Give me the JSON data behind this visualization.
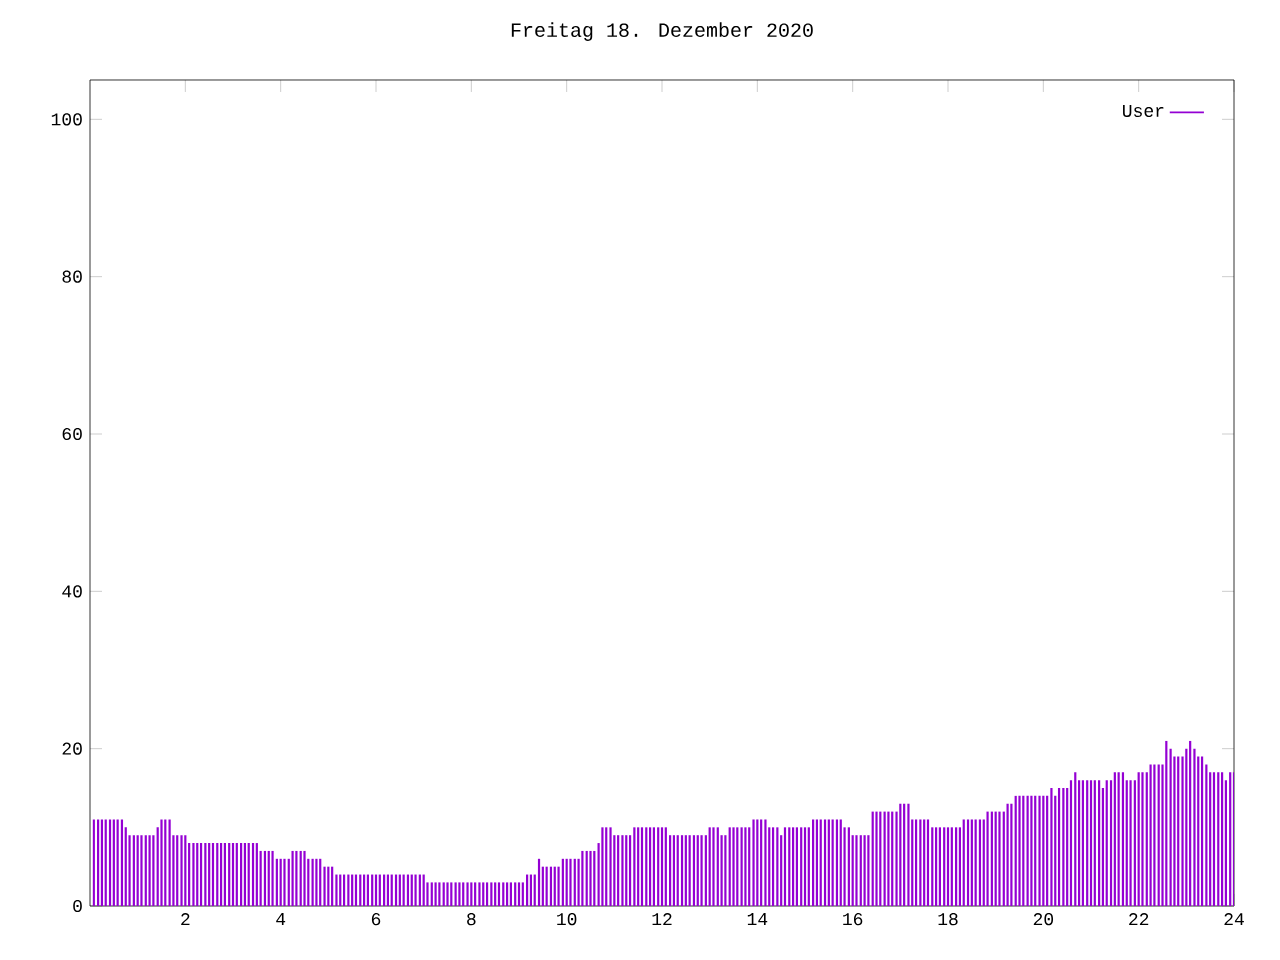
{
  "chart_data": {
    "type": "bar",
    "title": "Freitag 18. Dezember 2020",
    "x": [
      0.08,
      0.17,
      0.25,
      0.33,
      0.42,
      0.5,
      0.58,
      0.67,
      0.75,
      0.83,
      0.92,
      1,
      1.08,
      1.17,
      1.25,
      1.33,
      1.42,
      1.5,
      1.58,
      1.67,
      1.75,
      1.83,
      1.92,
      2,
      2.08,
      2.17,
      2.25,
      2.33,
      2.42,
      2.5,
      2.58,
      2.67,
      2.75,
      2.83,
      2.92,
      3,
      3.08,
      3.17,
      3.25,
      3.33,
      3.42,
      3.5,
      3.58,
      3.67,
      3.75,
      3.83,
      3.92,
      4,
      4.08,
      4.17,
      4.25,
      4.33,
      4.42,
      4.5,
      4.58,
      4.67,
      4.75,
      4.83,
      4.92,
      5,
      5.08,
      5.17,
      5.25,
      5.33,
      5.42,
      5.5,
      5.58,
      5.67,
      5.75,
      5.83,
      5.92,
      6,
      6.08,
      6.17,
      6.25,
      6.33,
      6.42,
      6.5,
      6.58,
      6.67,
      6.75,
      6.83,
      6.92,
      7,
      7.08,
      7.17,
      7.25,
      7.33,
      7.42,
      7.5,
      7.58,
      7.67,
      7.75,
      7.83,
      7.92,
      8,
      8.08,
      8.17,
      8.25,
      8.33,
      8.42,
      8.5,
      8.58,
      8.67,
      8.75,
      8.83,
      8.92,
      9,
      9.08,
      9.17,
      9.25,
      9.33,
      9.42,
      9.5,
      9.58,
      9.67,
      9.75,
      9.83,
      9.92,
      10,
      10.08,
      10.17,
      10.25,
      10.33,
      10.42,
      10.5,
      10.58,
      10.67,
      10.75,
      10.83,
      10.92,
      11,
      11.08,
      11.17,
      11.25,
      11.33,
      11.42,
      11.5,
      11.58,
      11.67,
      11.75,
      11.83,
      11.92,
      12,
      12.08,
      12.17,
      12.25,
      12.33,
      12.42,
      12.5,
      12.58,
      12.67,
      12.75,
      12.83,
      12.92,
      13,
      13.08,
      13.17,
      13.25,
      13.33,
      13.42,
      13.5,
      13.58,
      13.67,
      13.75,
      13.83,
      13.92,
      14,
      14.08,
      14.17,
      14.25,
      14.33,
      14.42,
      14.5,
      14.58,
      14.67,
      14.75,
      14.83,
      14.92,
      15,
      15.08,
      15.17,
      15.25,
      15.33,
      15.42,
      15.5,
      15.58,
      15.67,
      15.75,
      15.83,
      15.92,
      16,
      16.08,
      16.17,
      16.25,
      16.33,
      16.42,
      16.5,
      16.58,
      16.67,
      16.75,
      16.83,
      16.92,
      17,
      17.08,
      17.17,
      17.25,
      17.33,
      17.42,
      17.5,
      17.58,
      17.67,
      17.75,
      17.83,
      17.92,
      18,
      18.08,
      18.17,
      18.25,
      18.33,
      18.42,
      18.5,
      18.58,
      18.67,
      18.75,
      18.83,
      18.92,
      19,
      19.08,
      19.17,
      19.25,
      19.33,
      19.42,
      19.5,
      19.58,
      19.67,
      19.75,
      19.83,
      19.92,
      20,
      20.08,
      20.17,
      20.25,
      20.33,
      20.42,
      20.5,
      20.58,
      20.67,
      20.75,
      20.83,
      20.92,
      21,
      21.08,
      21.17,
      21.25,
      21.33,
      21.42,
      21.5,
      21.58,
      21.67,
      21.75,
      21.83,
      21.92,
      22,
      22.08,
      22.17,
      22.25,
      22.33,
      22.42,
      22.5,
      22.58,
      22.67,
      22.75,
      22.83,
      22.92,
      23,
      23.08,
      23.17,
      23.25,
      23.33,
      23.42,
      23.5,
      23.58,
      23.67,
      23.75,
      23.83,
      23.92,
      24
    ],
    "series": [
      {
        "name": "User",
        "color": "#9400d3",
        "values": [
          11,
          11,
          11,
          11,
          11,
          11,
          11,
          11,
          10,
          9,
          9,
          9,
          9,
          9,
          9,
          9,
          10,
          11,
          11,
          11,
          9,
          9,
          9,
          9,
          8,
          8,
          8,
          8,
          8,
          8,
          8,
          8,
          8,
          8,
          8,
          8,
          8,
          8,
          8,
          8,
          8,
          8,
          7,
          7,
          7,
          7,
          6,
          6,
          6,
          6,
          7,
          7,
          7,
          7,
          6,
          6,
          6,
          6,
          5,
          5,
          5,
          4,
          4,
          4,
          4,
          4,
          4,
          4,
          4,
          4,
          4,
          4,
          4,
          4,
          4,
          4,
          4,
          4,
          4,
          4,
          4,
          4,
          4,
          4,
          3,
          3,
          3,
          3,
          3,
          3,
          3,
          3,
          3,
          3,
          3,
          3,
          3,
          3,
          3,
          3,
          3,
          3,
          3,
          3,
          3,
          3,
          3,
          3,
          3,
          4,
          4,
          4,
          6,
          5,
          5,
          5,
          5,
          5,
          6,
          6,
          6,
          6,
          6,
          7,
          7,
          7,
          7,
          8,
          10,
          10,
          10,
          9,
          9,
          9,
          9,
          9,
          10,
          10,
          10,
          10,
          10,
          10,
          10,
          10,
          10,
          9,
          9,
          9,
          9,
          9,
          9,
          9,
          9,
          9,
          9,
          10,
          10,
          10,
          9,
          9,
          10,
          10,
          10,
          10,
          10,
          10,
          11,
          11,
          11,
          11,
          10,
          10,
          10,
          9,
          10,
          10,
          10,
          10,
          10,
          10,
          10,
          11,
          11,
          11,
          11,
          11,
          11,
          11,
          11,
          10,
          10,
          9,
          9,
          9,
          9,
          9,
          12,
          12,
          12,
          12,
          12,
          12,
          12,
          13,
          13,
          13,
          11,
          11,
          11,
          11,
          11,
          10,
          10,
          10,
          10,
          10,
          10,
          10,
          10,
          11,
          11,
          11,
          11,
          11,
          11,
          12,
          12,
          12,
          12,
          12,
          13,
          13,
          14,
          14,
          14,
          14,
          14,
          14,
          14,
          14,
          14,
          15,
          14,
          15,
          15,
          15,
          16,
          17,
          16,
          16,
          16,
          16,
          16,
          16,
          15,
          16,
          16,
          17,
          17,
          17,
          16,
          16,
          16,
          17,
          17,
          17,
          18,
          18,
          18,
          18,
          21,
          20,
          19,
          19,
          19,
          20,
          21,
          20,
          19,
          19,
          18,
          17,
          17,
          17,
          17,
          16,
          17,
          17
        ]
      }
    ],
    "xlim": [
      0,
      24
    ],
    "xticks": [
      2,
      4,
      6,
      8,
      10,
      12,
      14,
      16,
      18,
      20,
      22,
      24
    ],
    "ylim": [
      0,
      105
    ],
    "yticks": [
      0,
      20,
      40,
      60,
      80,
      100
    ],
    "legend": "top right"
  }
}
